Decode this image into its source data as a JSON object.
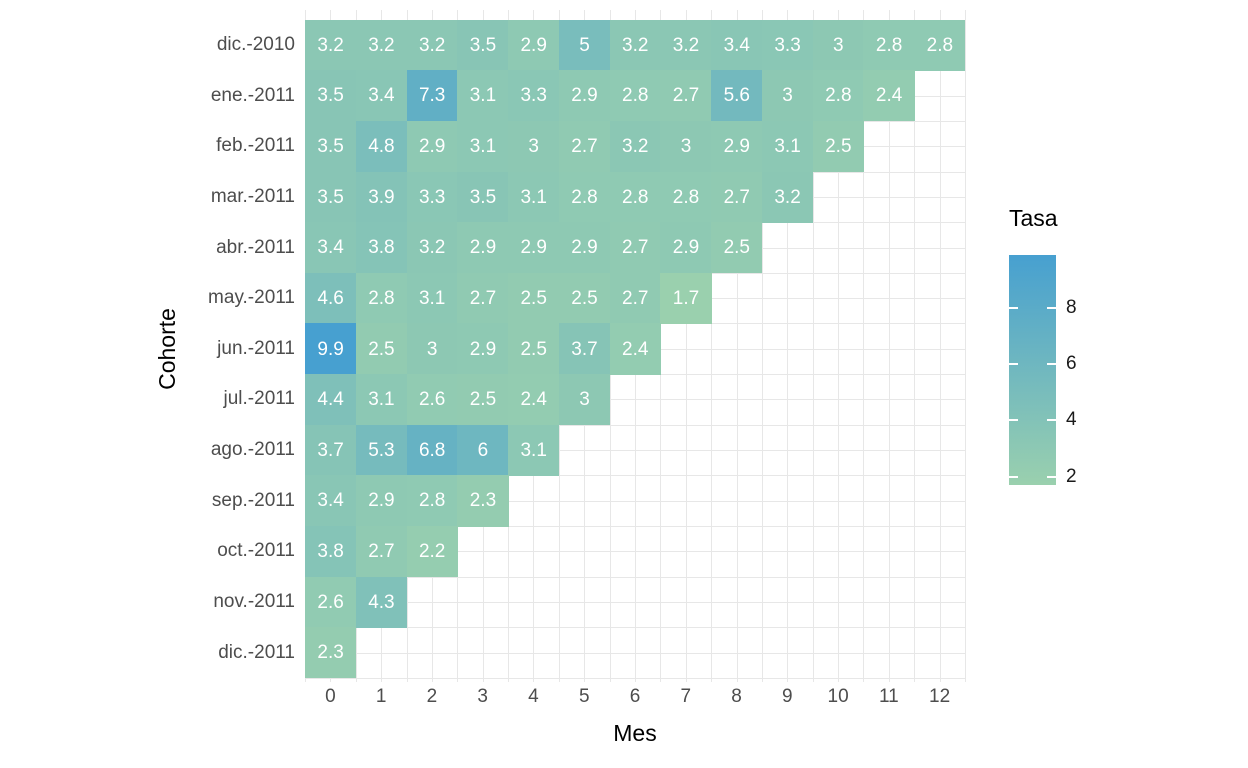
{
  "chart_data": {
    "type": "heatmap",
    "title": "",
    "xlabel": "Mes",
    "ylabel": "Cohorte",
    "x_ticks": [
      0,
      1,
      2,
      3,
      4,
      5,
      6,
      7,
      8,
      9,
      10,
      11,
      12
    ],
    "x_range": [
      0,
      12
    ],
    "grid": "on",
    "series": [
      {
        "name": "dic.-2010",
        "values": [
          3.2,
          3.2,
          3.2,
          3.5,
          2.9,
          5,
          3.2,
          3.2,
          3.4,
          3.3,
          3,
          2.8,
          2.8
        ]
      },
      {
        "name": "ene.-2011",
        "values": [
          3.5,
          3.4,
          7.3,
          3.1,
          3.3,
          2.9,
          2.8,
          2.7,
          5.6,
          3,
          2.8,
          2.4
        ]
      },
      {
        "name": "feb.-2011",
        "values": [
          3.5,
          4.8,
          2.9,
          3.1,
          3,
          2.7,
          3.2,
          3,
          2.9,
          3.1,
          2.5
        ]
      },
      {
        "name": "mar.-2011",
        "values": [
          3.5,
          3.9,
          3.3,
          3.5,
          3.1,
          2.8,
          2.8,
          2.8,
          2.7,
          3.2
        ]
      },
      {
        "name": "abr.-2011",
        "values": [
          3.4,
          3.8,
          3.2,
          2.9,
          2.9,
          2.9,
          2.7,
          2.9,
          2.5
        ]
      },
      {
        "name": "may.-2011",
        "values": [
          4.6,
          2.8,
          3.1,
          2.7,
          2.5,
          2.5,
          2.7,
          1.7
        ]
      },
      {
        "name": "jun.-2011",
        "values": [
          9.9,
          2.5,
          3,
          2.9,
          2.5,
          3.7,
          2.4
        ]
      },
      {
        "name": "jul.-2011",
        "values": [
          4.4,
          3.1,
          2.6,
          2.5,
          2.4,
          3
        ]
      },
      {
        "name": "ago.-2011",
        "values": [
          3.7,
          5.3,
          6.8,
          6,
          3.1
        ]
      },
      {
        "name": "sep.-2011",
        "values": [
          3.4,
          2.9,
          2.8,
          2.3
        ]
      },
      {
        "name": "oct.-2011",
        "values": [
          3.8,
          2.7,
          2.2
        ]
      },
      {
        "name": "nov.-2011",
        "values": [
          2.6,
          4.3
        ]
      },
      {
        "name": "dic.-2011",
        "values": [
          2.3
        ]
      }
    ],
    "legend": {
      "title": "Tasa",
      "position": "right",
      "ticks": [
        8,
        6,
        4,
        2
      ],
      "domain_min": 1.7,
      "domain_max": 9.9
    },
    "colors": {
      "low": "#9ad0ae",
      "high": "#47a0d0",
      "cell_text": "#ffffff",
      "axis_text": "#4d4d4d",
      "title_text": "#000000",
      "grid": "#e7e7e7",
      "background": "#ffffff"
    }
  }
}
